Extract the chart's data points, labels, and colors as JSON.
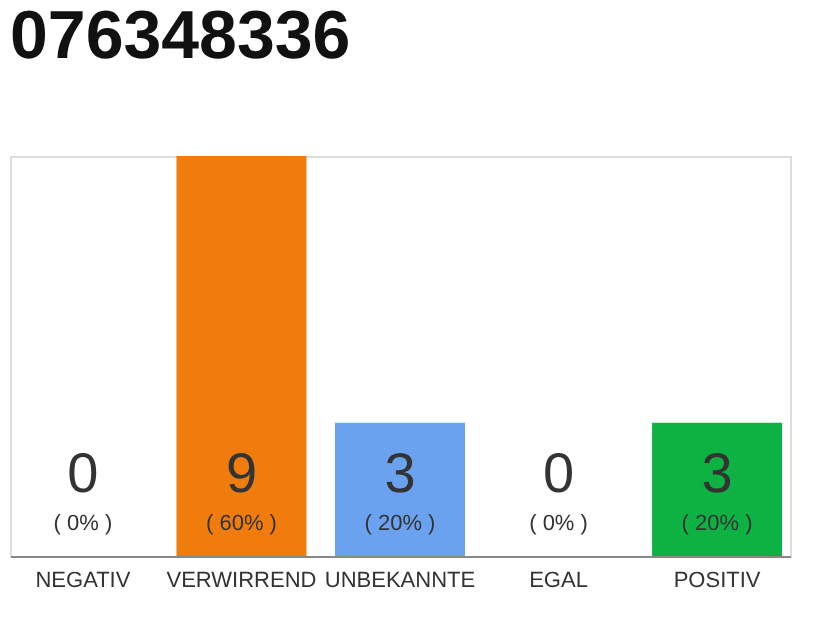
{
  "chart_data": {
    "type": "bar",
    "title": "076348336",
    "categories": [
      "NEGATIV",
      "VERWIRREND",
      "UNBEKANNTE",
      "EGAL",
      "POSITIV"
    ],
    "values": [
      0,
      9,
      3,
      0,
      3
    ],
    "colors": [
      "#eeeeee",
      "#f07c0e",
      "#6aa2f0",
      "#eeeeee",
      "#0db243"
    ],
    "ylim": [
      0,
      9
    ],
    "tick_labels": "x",
    "grid": false,
    "data_labels": true,
    "annotations": [
      {
        "text": "( 0% )",
        "x": "NEGATIV",
        "y": 0
      },
      {
        "text": "( 60% )",
        "x": "VERWIRREND",
        "y": 0
      },
      {
        "text": "( 20% )",
        "x": "UNBEKANNTE",
        "y": 0
      },
      {
        "text": "( 0% )",
        "x": "EGAL",
        "y": 0
      },
      {
        "text": "( 20% )",
        "x": "POSITIV",
        "y": 0
      }
    ]
  }
}
